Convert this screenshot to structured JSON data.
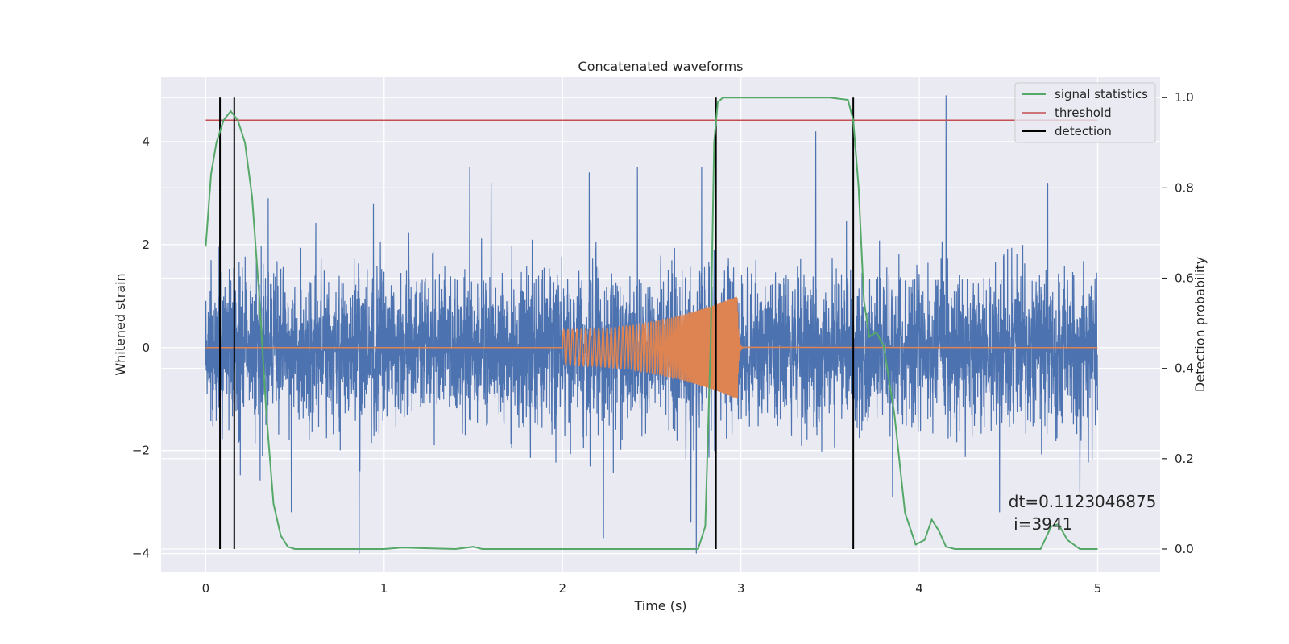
{
  "chart_data": {
    "type": "line",
    "title": "Concatenated waveforms",
    "xlabel": "Time (s)",
    "ylabel": "Whitened strain",
    "y2label": "Detection probability",
    "xlim": [
      -0.25,
      5.35
    ],
    "ylim": [
      -4.35,
      5.25
    ],
    "y2lim": [
      -0.05,
      1.045
    ],
    "x_ticks": [
      0,
      1,
      2,
      3,
      4,
      5
    ],
    "x_tick_labels": [
      "0",
      "1",
      "2",
      "3",
      "4",
      "5"
    ],
    "y_ticks": [
      -4,
      -2,
      0,
      2,
      4
    ],
    "y_tick_labels": [
      "−4",
      "−2",
      "0",
      "2",
      "4"
    ],
    "y2_ticks": [
      0.0,
      0.2,
      0.4,
      0.6,
      0.8,
      1.0
    ],
    "y2_tick_labels": [
      "0.0",
      "0.2",
      "0.4",
      "0.6",
      "0.8",
      "1.0"
    ],
    "grid": true,
    "legend_position": "top-right",
    "legend": [
      {
        "label": "signal statistics",
        "color": "#55a868"
      },
      {
        "label": "threshold",
        "color": "#c44e52"
      },
      {
        "label": "detection",
        "color": "#000000"
      }
    ],
    "colors": {
      "strain": "#4c72b0",
      "injected_signal": "#dd8452",
      "signal_statistics": "#55a868",
      "threshold": "#c44e52",
      "detection": "#000000",
      "plot_background": "#eaeaf2",
      "grid": "#ffffff"
    },
    "strain": {
      "x_range": [
        0,
        5
      ],
      "typical_amplitude": 1.3,
      "peaks": [
        {
          "x": 0.03,
          "y": 1.7
        },
        {
          "x": 0.08,
          "y": -2.2
        },
        {
          "x": 0.35,
          "y": 2.9
        },
        {
          "x": 0.48,
          "y": -3.2
        },
        {
          "x": 0.86,
          "y": -4.0
        },
        {
          "x": 0.94,
          "y": 2.8
        },
        {
          "x": 1.48,
          "y": 3.5
        },
        {
          "x": 1.6,
          "y": 3.2
        },
        {
          "x": 2.15,
          "y": 3.4
        },
        {
          "x": 2.23,
          "y": -3.7
        },
        {
          "x": 2.42,
          "y": 3.5
        },
        {
          "x": 2.72,
          "y": -3.4
        },
        {
          "x": 2.75,
          "y": -4.0
        },
        {
          "x": 2.78,
          "y": 3.5
        },
        {
          "x": 3.42,
          "y": 4.2
        },
        {
          "x": 3.85,
          "y": -2.9
        },
        {
          "x": 4.15,
          "y": 4.9
        },
        {
          "x": 4.45,
          "y": -3.2
        },
        {
          "x": 4.72,
          "y": 3.2
        },
        {
          "x": 4.9,
          "y": -2.8
        }
      ]
    },
    "injected_signal": {
      "x_start": 2.0,
      "x_merger": 2.98,
      "amp_start": 0.35,
      "amp_peak": 1.0,
      "freq_start_hz": 40,
      "freq_end_hz": 250
    },
    "signal_statistics": {
      "x": [
        0.0,
        0.03,
        0.06,
        0.1,
        0.14,
        0.18,
        0.22,
        0.26,
        0.3,
        0.34,
        0.38,
        0.42,
        0.46,
        0.5,
        1.0,
        1.1,
        1.4,
        1.5,
        1.55,
        2.0,
        2.5,
        2.76,
        2.8,
        2.83,
        2.85,
        2.87,
        2.9,
        2.95,
        3.5,
        3.6,
        3.63,
        3.66,
        3.69,
        3.72,
        3.76,
        3.8,
        3.86,
        3.92,
        3.98,
        4.03,
        4.07,
        4.11,
        4.15,
        4.2,
        4.5,
        4.68,
        4.74,
        4.78,
        4.83,
        4.9,
        5.0
      ],
      "y": [
        0.67,
        0.83,
        0.9,
        0.95,
        0.97,
        0.95,
        0.9,
        0.78,
        0.56,
        0.3,
        0.1,
        0.03,
        0.005,
        0.0,
        0.0,
        0.003,
        0.0,
        0.005,
        0.0,
        0.0,
        0.0,
        0.0,
        0.05,
        0.45,
        0.9,
        0.99,
        1.0,
        1.0,
        1.0,
        0.995,
        0.95,
        0.8,
        0.55,
        0.47,
        0.48,
        0.45,
        0.3,
        0.08,
        0.01,
        0.02,
        0.065,
        0.04,
        0.005,
        0.0,
        0.0,
        0.0,
        0.05,
        0.055,
        0.02,
        0.0,
        0.0
      ]
    },
    "threshold": {
      "value": 0.95,
      "x_range": [
        0,
        5
      ]
    },
    "detections": [
      0.08,
      0.16,
      2.86,
      3.63
    ],
    "annotation": "dt=0.1123046875\n i=3941",
    "annotation_lines": [
      "dt=0.1123046875",
      " i=3941"
    ],
    "annotation_position": {
      "x": 4.5,
      "y": -3.1
    }
  }
}
